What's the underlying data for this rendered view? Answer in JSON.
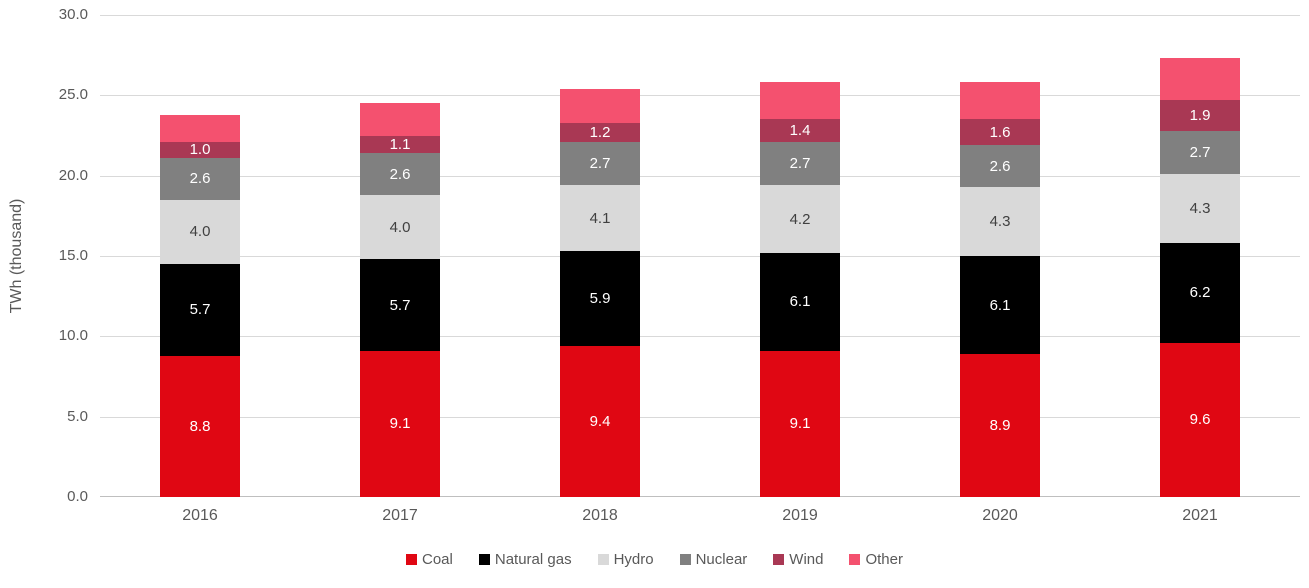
{
  "chart_data": {
    "type": "bar",
    "stacked": true,
    "title": "",
    "xlabel": "",
    "ylabel": "TWh (thousand)",
    "ylim": [
      0,
      30
    ],
    "ytick_step": 5,
    "ytick_labels": [
      "0.0",
      "5.0",
      "10.0",
      "15.0",
      "20.0",
      "25.0",
      "30.0"
    ],
    "grid": true,
    "legend_position": "bottom",
    "categories": [
      "2016",
      "2017",
      "2018",
      "2019",
      "2020",
      "2021"
    ],
    "series": [
      {
        "name": "Coal",
        "color": "#e00713",
        "label_color": "#ffffff",
        "labels_shown": true,
        "values": [
          8.8,
          9.1,
          9.4,
          9.1,
          8.9,
          9.6
        ]
      },
      {
        "name": "Natural gas",
        "color": "#000000",
        "label_color": "#ffffff",
        "labels_shown": true,
        "values": [
          5.7,
          5.7,
          5.9,
          6.1,
          6.1,
          6.2
        ]
      },
      {
        "name": "Hydro",
        "color": "#d9d9d9",
        "label_color": "#404040",
        "labels_shown": true,
        "values": [
          4.0,
          4.0,
          4.1,
          4.2,
          4.3,
          4.3
        ]
      },
      {
        "name": "Nuclear",
        "color": "#808080",
        "label_color": "#ffffff",
        "labels_shown": true,
        "values": [
          2.6,
          2.6,
          2.7,
          2.7,
          2.6,
          2.7
        ]
      },
      {
        "name": "Wind",
        "color": "#a93854",
        "label_color": "#ffffff",
        "labels_shown": true,
        "values": [
          1.0,
          1.1,
          1.2,
          1.4,
          1.6,
          1.9
        ]
      },
      {
        "name": "Other",
        "color": "#f4516f",
        "label_color": "#ffffff",
        "labels_shown": false,
        "values": [
          1.7,
          2.0,
          2.1,
          2.3,
          2.3,
          2.6
        ]
      }
    ],
    "colors": {
      "axis_text": "#595959",
      "gridline": "#d9d9d9",
      "axis_baseline": "#bfbfbf"
    }
  }
}
